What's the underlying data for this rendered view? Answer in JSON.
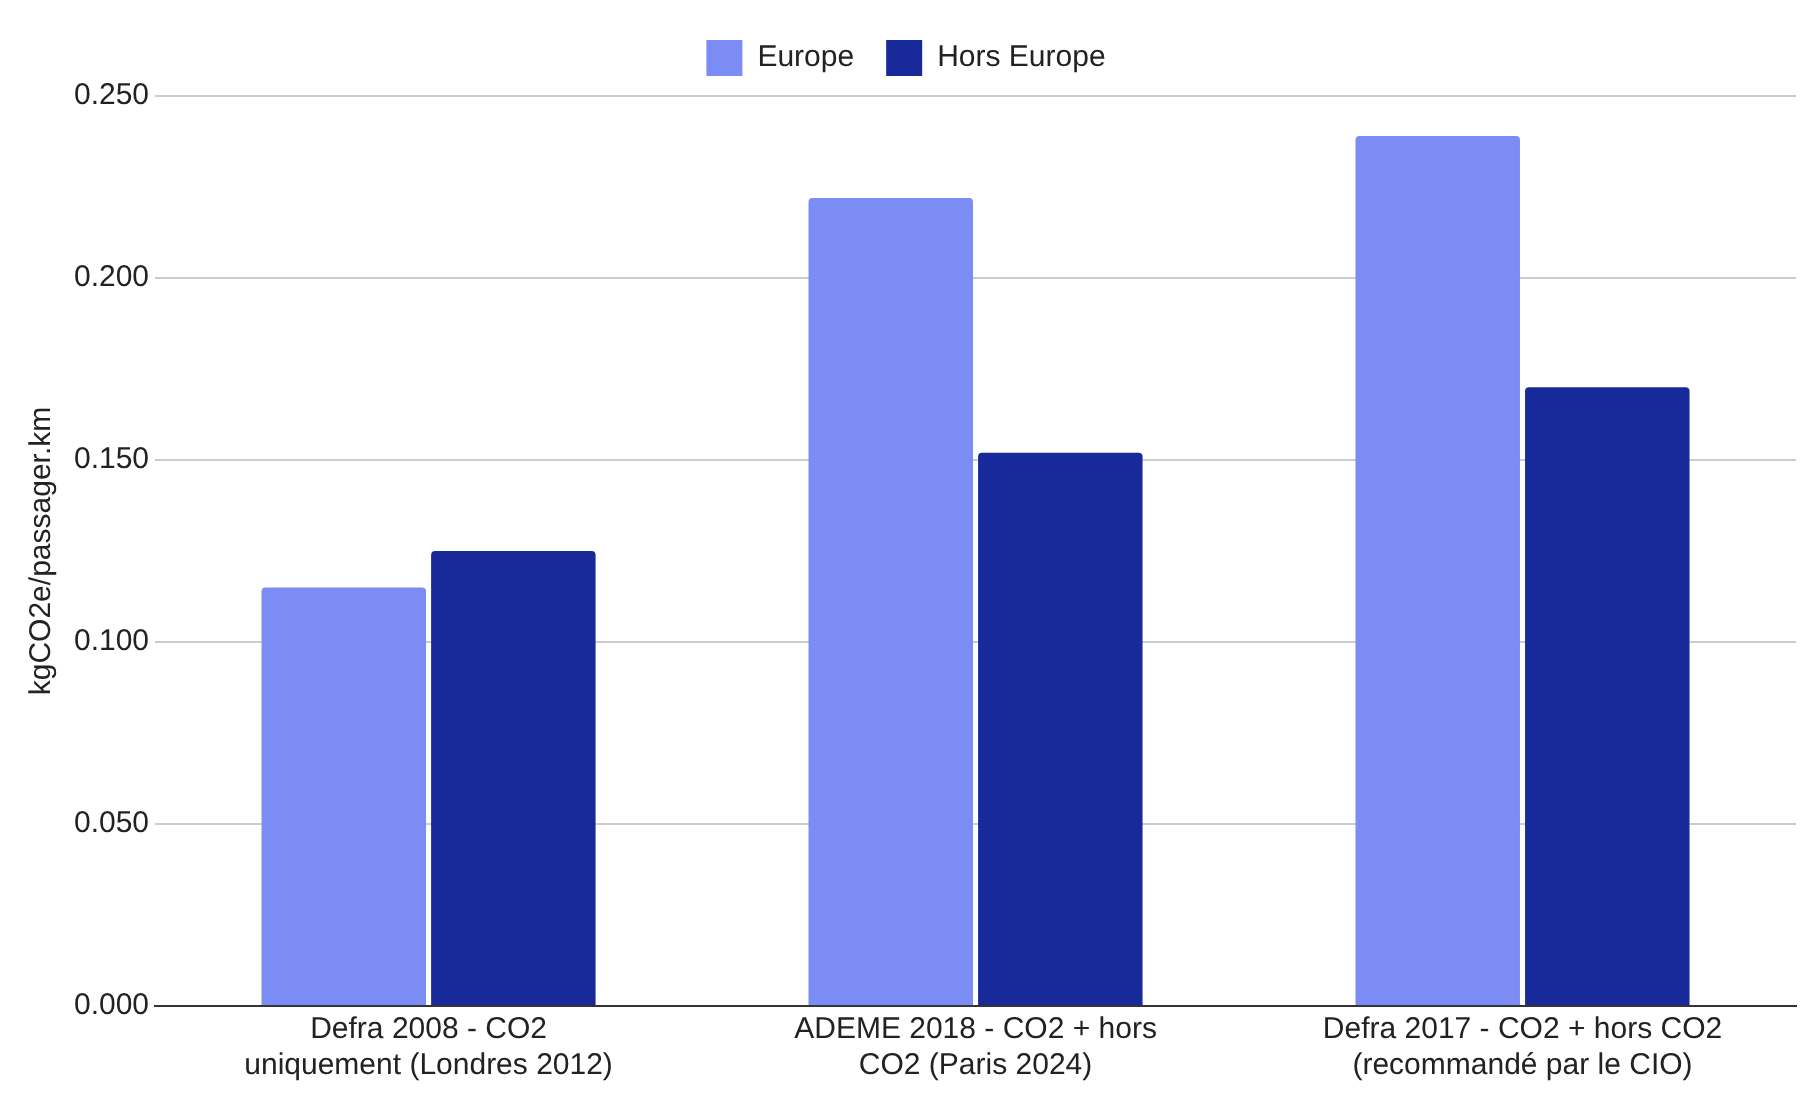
{
  "chart_data": {
    "type": "bar",
    "ylabel": "kgCO2e/passager.km",
    "categories": [
      "Defra 2008 - CO2 uniquement (Londres 2012)",
      "ADEME 2018 - CO2 + hors CO2 (Paris 2024)",
      "Defra 2017 - CO2 + hors CO2 (recommandé par le CIO)"
    ],
    "series": [
      {
        "name": "Europe",
        "color": "#7b8cf5",
        "values": [
          0.115,
          0.222,
          0.239
        ]
      },
      {
        "name": "Hors Europe",
        "color": "#182a9a",
        "values": [
          0.125,
          0.152,
          0.17
        ]
      }
    ],
    "ylim": [
      0,
      0.25
    ],
    "yticks": [
      {
        "value": 0,
        "label": "0.000"
      },
      {
        "value": 0.05,
        "label": "0.050"
      },
      {
        "value": 0.1,
        "label": "0.100"
      },
      {
        "value": 0.15,
        "label": "0.150"
      },
      {
        "value": 0.2,
        "label": "0.200"
      },
      {
        "value": 0.25,
        "label": "0.250"
      }
    ],
    "grid": "y",
    "legend": "top"
  }
}
